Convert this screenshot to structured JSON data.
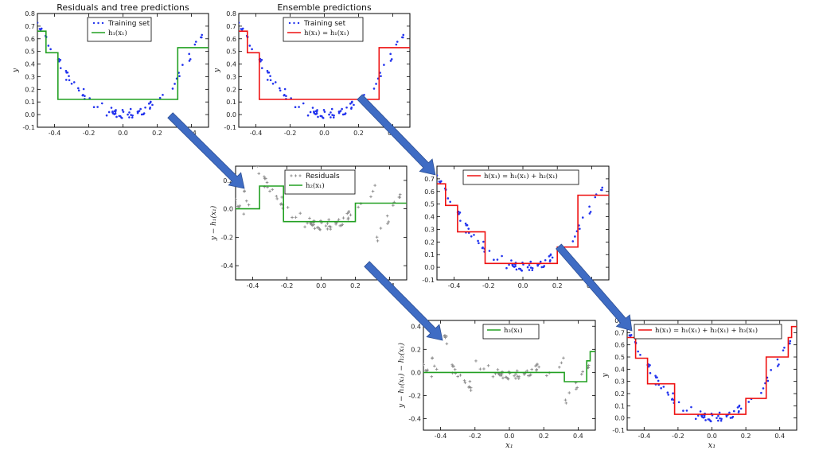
{
  "colors": {
    "training": "#2233ee",
    "residual": "#8a8a8a",
    "tree": "#22a022",
    "ensemble": "#ee1111",
    "arrow": "#3f6cc4"
  },
  "chart_data": [
    {
      "id": "p1",
      "type": "scatter",
      "title": "Residuals and tree predictions",
      "xlabel": "",
      "ylabel": "y",
      "xlim": [
        -0.5,
        0.5
      ],
      "ylim": [
        -0.1,
        0.8
      ],
      "xticks": [
        "-0.4",
        "-0.2",
        "0.0",
        "0.2",
        "0.4"
      ],
      "yticks": [
        "-0.1",
        "0.0",
        "0.1",
        "0.2",
        "0.3",
        "0.4",
        "0.5",
        "0.6",
        "0.7",
        "0.8"
      ],
      "points": "training",
      "series": [
        {
          "name": "Training set",
          "style": "dots"
        },
        {
          "name": "h₁(x₁)",
          "style": "line",
          "color": "tree",
          "x": [
            -0.5,
            -0.45,
            -0.45,
            -0.38,
            -0.38,
            0.32,
            0.32,
            0.5
          ],
          "y": [
            0.66,
            0.66,
            0.49,
            0.49,
            0.12,
            0.12,
            0.53,
            0.53
          ]
        }
      ]
    },
    {
      "id": "p2",
      "type": "scatter",
      "title": "Ensemble predictions",
      "xlabel": "",
      "ylabel": "y",
      "xlim": [
        -0.5,
        0.5
      ],
      "ylim": [
        -0.1,
        0.8
      ],
      "xticks": [
        "-0.4",
        "-0.2",
        "0.0",
        "0.2",
        "0.4"
      ],
      "yticks": [
        "-0.1",
        "0.0",
        "0.1",
        "0.2",
        "0.3",
        "0.4",
        "0.5",
        "0.6",
        "0.7",
        "0.8"
      ],
      "points": "training",
      "series": [
        {
          "name": "Training set",
          "style": "dots"
        },
        {
          "name": "h(x₁) = h₁(x₁)",
          "style": "line",
          "color": "ensemble",
          "x": [
            -0.5,
            -0.45,
            -0.45,
            -0.38,
            -0.38,
            0.32,
            0.32,
            0.5
          ],
          "y": [
            0.66,
            0.66,
            0.49,
            0.49,
            0.12,
            0.12,
            0.53,
            0.53
          ]
        }
      ]
    },
    {
      "id": "p3",
      "type": "scatter",
      "title": "",
      "xlabel": "",
      "ylabel": "y − h₁(x₁)",
      "xlim": [
        -0.5,
        0.5
      ],
      "ylim": [
        -0.5,
        0.3
      ],
      "xticks": [
        "-0.4",
        "-0.2",
        "0.0",
        "0.2",
        "0.4"
      ],
      "yticks": [
        "-0.4",
        "-0.2",
        "0.0",
        "0.2"
      ],
      "points": "residual",
      "series": [
        {
          "name": "Residuals",
          "style": "plus"
        },
        {
          "name": "h₂(x₁)",
          "style": "line",
          "color": "tree",
          "x": [
            -0.5,
            -0.36,
            -0.36,
            -0.22,
            -0.22,
            0.2,
            0.2,
            0.5
          ],
          "y": [
            0.0,
            0.0,
            0.16,
            0.16,
            -0.09,
            -0.09,
            0.04,
            0.04
          ]
        }
      ]
    },
    {
      "id": "p4",
      "type": "scatter",
      "title": "",
      "xlabel": "",
      "ylabel": "",
      "xlim": [
        -0.5,
        0.5
      ],
      "ylim": [
        -0.1,
        0.8
      ],
      "xticks": [
        "-0.4",
        "-0.2",
        "0.0",
        "0.2",
        "0.4"
      ],
      "yticks": [
        "-0.1",
        "0.0",
        "0.1",
        "0.2",
        "0.3",
        "0.4",
        "0.5",
        "0.6",
        "0.7"
      ],
      "points": "training",
      "series": [
        {
          "name": "h(x₁) = h₁(x₁) + h₂(x₁)",
          "style": "line",
          "color": "ensemble",
          "x": [
            -0.5,
            -0.45,
            -0.45,
            -0.38,
            -0.38,
            -0.22,
            -0.22,
            0.2,
            0.2,
            0.32,
            0.32,
            0.5
          ],
          "y": [
            0.66,
            0.66,
            0.49,
            0.49,
            0.28,
            0.28,
            0.03,
            0.03,
            0.16,
            0.16,
            0.57,
            0.57
          ]
        }
      ]
    },
    {
      "id": "p5",
      "type": "scatter",
      "title": "",
      "xlabel": "x₁",
      "ylabel": "y − h₁(x₁) − h₂(x₁)",
      "xlim": [
        -0.5,
        0.5
      ],
      "ylim": [
        -0.5,
        0.45
      ],
      "xticks": [
        "-0.4",
        "-0.2",
        "0.0",
        "0.2",
        "0.4"
      ],
      "yticks": [
        "-0.4",
        "-0.2",
        "0.0",
        "0.2",
        "0.4"
      ],
      "points": "residual2",
      "series": [
        {
          "name": "h₃(x₁)",
          "style": "line",
          "color": "tree",
          "x": [
            -0.5,
            0.32,
            0.32,
            0.45,
            0.45,
            0.47,
            0.47,
            0.5
          ],
          "y": [
            0.0,
            0.0,
            -0.08,
            -0.08,
            0.1,
            0.1,
            0.18,
            0.18
          ]
        }
      ]
    },
    {
      "id": "p6",
      "type": "scatter",
      "title": "",
      "xlabel": "x₁",
      "ylabel": "y",
      "xlim": [
        -0.5,
        0.5
      ],
      "ylim": [
        -0.1,
        0.8
      ],
      "xticks": [
        "-0.4",
        "-0.2",
        "0.0",
        "0.2",
        "0.4"
      ],
      "yticks": [
        "-0.1",
        "0.0",
        "0.1",
        "0.2",
        "0.3",
        "0.4",
        "0.5",
        "0.6",
        "0.7",
        "0.8"
      ],
      "points": "training",
      "series": [
        {
          "name": "h(x₁) = h₁(x₁) + h₂(x₁) + h₃(x₁)",
          "style": "line",
          "color": "ensemble",
          "x": [
            -0.5,
            -0.45,
            -0.45,
            -0.38,
            -0.38,
            -0.22,
            -0.22,
            0.2,
            0.2,
            0.32,
            0.32,
            0.45,
            0.45,
            0.47,
            0.47,
            0.5
          ],
          "y": [
            0.66,
            0.66,
            0.49,
            0.49,
            0.28,
            0.28,
            0.03,
            0.03,
            0.16,
            0.16,
            0.5,
            0.5,
            0.66,
            0.66,
            0.75,
            0.75
          ]
        }
      ]
    }
  ]
}
